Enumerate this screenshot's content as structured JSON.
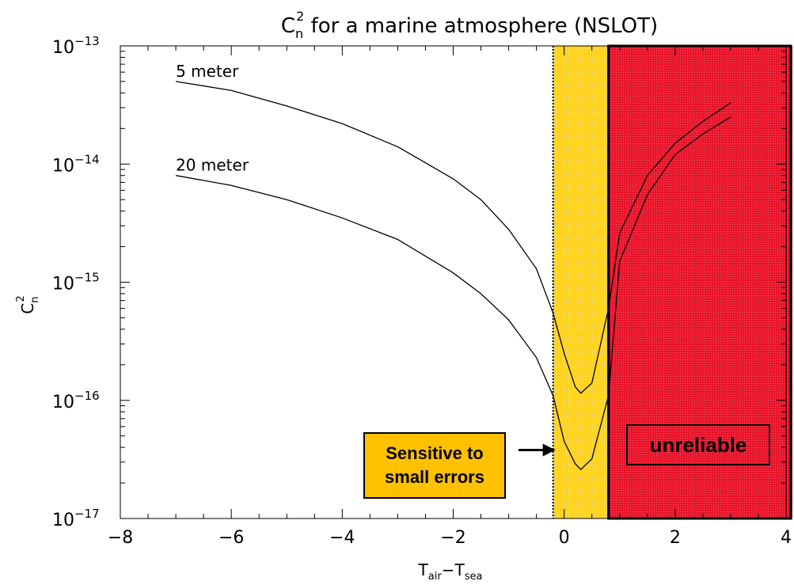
{
  "chart_data": {
    "type": "line",
    "title": {
      "base": "C",
      "sub": "n",
      "sup": "2",
      "rest": " for a marine atmosphere (NSLOT)"
    },
    "xlabel": {
      "t1": "T",
      "s1": "air",
      "mid": "−T",
      "s2": "sea"
    },
    "ylabel": {
      "base": "C",
      "sub": "n",
      "sup": "2"
    },
    "xlim": [
      -8,
      4
    ],
    "ylim_log10": [
      -17,
      -13
    ],
    "yscale": "log",
    "x_ticks": [
      -8,
      -6,
      -4,
      -2,
      0,
      2,
      4
    ],
    "x_tick_labels": [
      "−8",
      "−6",
      "−4",
      "−2",
      "0",
      "2",
      "4"
    ],
    "y_ticks": [
      {
        "base": "10",
        "exp": "−13",
        "log": -13
      },
      {
        "base": "10",
        "exp": "−14",
        "log": -14
      },
      {
        "base": "10",
        "exp": "−15",
        "log": -15
      },
      {
        "base": "10",
        "exp": "−16",
        "log": -16
      },
      {
        "base": "10",
        "exp": "−17",
        "log": -17
      }
    ],
    "series": [
      {
        "name": "5 meter",
        "x": [
          -7,
          -6,
          -5,
          -4,
          -3,
          -2,
          -1.5,
          -1,
          -0.5,
          -0.2,
          0,
          0.2,
          0.3,
          0.5,
          0.8,
          1,
          1.5,
          2,
          2.5,
          3
        ],
        "y": [
          5e-14,
          4.2e-14,
          3.1e-14,
          2.2e-14,
          1.4e-14,
          7.5e-15,
          5e-15,
          2.8e-15,
          1.3e-15,
          5.5e-16,
          2.5e-16,
          1.3e-16,
          1.15e-16,
          1.4e-16,
          6e-16,
          2.6e-15,
          8e-15,
          1.5e-14,
          2.3e-14,
          3.3e-14
        ]
      },
      {
        "name": "20 meter",
        "x": [
          -7,
          -6,
          -5,
          -4,
          -3,
          -2,
          -1.5,
          -1,
          -0.5,
          -0.2,
          0,
          0.2,
          0.3,
          0.5,
          0.8,
          1,
          1.5,
          2,
          2.5,
          3
        ],
        "y": [
          8e-15,
          6.6e-15,
          5e-15,
          3.5e-15,
          2.3e-15,
          1.2e-15,
          8e-16,
          4.8e-16,
          2.3e-16,
          1.1e-16,
          4.5e-17,
          2.9e-17,
          2.6e-17,
          3.2e-17,
          1.1e-16,
          1.5e-15,
          5.5e-15,
          1.2e-14,
          1.8e-14,
          2.5e-14
        ]
      }
    ],
    "regions": [
      {
        "name": "sensitive",
        "x0": -0.2,
        "x1": 0.8,
        "color": "#ffd21e"
      },
      {
        "name": "unreliable",
        "x0": 0.8,
        "x1": 4,
        "color": "#e8142a"
      }
    ],
    "annotations": {
      "sensitive_line1": "Sensitive to",
      "sensitive_line2": "small errors",
      "sensitive_arrow_target": {
        "x": -0.2,
        "y": 3.8e-17
      },
      "unreliable": "unreliable"
    },
    "grid": false
  }
}
